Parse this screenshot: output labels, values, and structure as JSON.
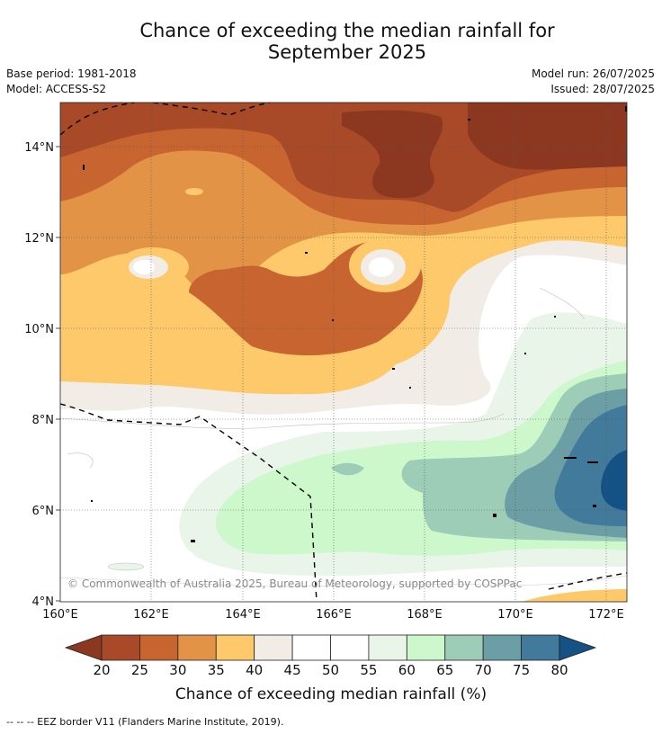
{
  "title_line1": "Chance of exceeding the median rainfall for",
  "title_line2": "September 2025",
  "meta": {
    "base_period": "Base period: 1981-2018",
    "model": "Model: ACCESS-S2",
    "model_run": "Model run: 26/07/2025",
    "issued": "Issued: 28/07/2025"
  },
  "copyright": "© Commonwealth of Australia 2025, Bureau of Meteorology, supported by COSPPac",
  "axes": {
    "x_ticks": [
      "160°E",
      "162°E",
      "164°E",
      "166°E",
      "168°E",
      "170°E",
      "172°E"
    ],
    "y_ticks": [
      "14°N",
      "12°N",
      "10°N",
      "8°N",
      "6°N",
      "4°N"
    ]
  },
  "colorbar": {
    "labels": [
      "20",
      "25",
      "30",
      "35",
      "40",
      "45",
      "50",
      "55",
      "60",
      "65",
      "70",
      "75",
      "80"
    ],
    "colors": [
      "#a84a28",
      "#c8642f",
      "#e29345",
      "#fdc96a",
      "#f1ede6",
      "#ffffff",
      "#ffffff",
      "#eaf5ea",
      "#ccf8cc",
      "#9dcdb7",
      "#6b9fa5",
      "#427a9b"
    ],
    "low_extend_color": "#8c3820",
    "high_extend_color": "#145185",
    "title": "Chance of exceeding median rainfall (%)"
  },
  "footnote": "--  --  -- EEZ border V11 (Flanders Marine Institute, 2019)."
}
